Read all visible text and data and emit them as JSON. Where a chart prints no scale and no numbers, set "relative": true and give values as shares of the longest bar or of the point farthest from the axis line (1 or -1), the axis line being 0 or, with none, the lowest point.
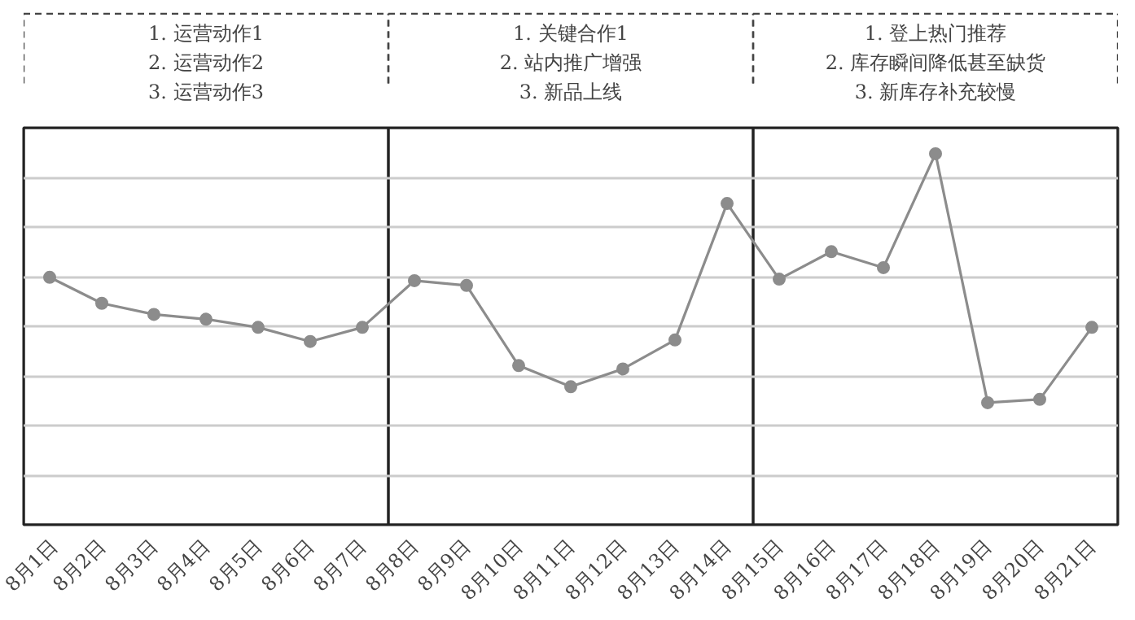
{
  "chart_data": {
    "type": "line",
    "relative": true,
    "color": "#8c8c8c",
    "marker": "circle",
    "grid": "y",
    "categories": [
      "8月1日",
      "8月2日",
      "8月3日",
      "8月4日",
      "8月5日",
      "8月6日",
      "8月7日",
      "8月8日",
      "8月9日",
      "8月10日",
      "8月11日",
      "8月12日",
      "8月13日",
      "8月14日",
      "8月15日",
      "8月16日",
      "8月17日",
      "8月18日",
      "8月19日",
      "8月20日",
      "8月21日"
    ],
    "values": [
      0.667,
      0.597,
      0.567,
      0.554,
      0.532,
      0.494,
      0.532,
      0.658,
      0.645,
      0.429,
      0.372,
      0.42,
      0.498,
      0.866,
      0.662,
      0.736,
      0.693,
      1,
      0.329,
      0.338,
      0.532
    ],
    "bands": [
      {
        "axis": "x",
        "from": "8月1日",
        "to": "8月7日",
        "label": "1. 运营动作1\n2. 运营动作2\n3. 运营动作3"
      },
      {
        "axis": "x",
        "from": "8月8日",
        "to": "8月14日",
        "label": "1. 关键合作1\n2. 站内推广增强\n3. 新品上线"
      },
      {
        "axis": "x",
        "from": "8月15日",
        "to": "8月21日",
        "label": "1. 登上热门推荐\n2. 库存瞬间降低甚至缺货\n3. 新库存补充较慢"
      }
    ]
  }
}
